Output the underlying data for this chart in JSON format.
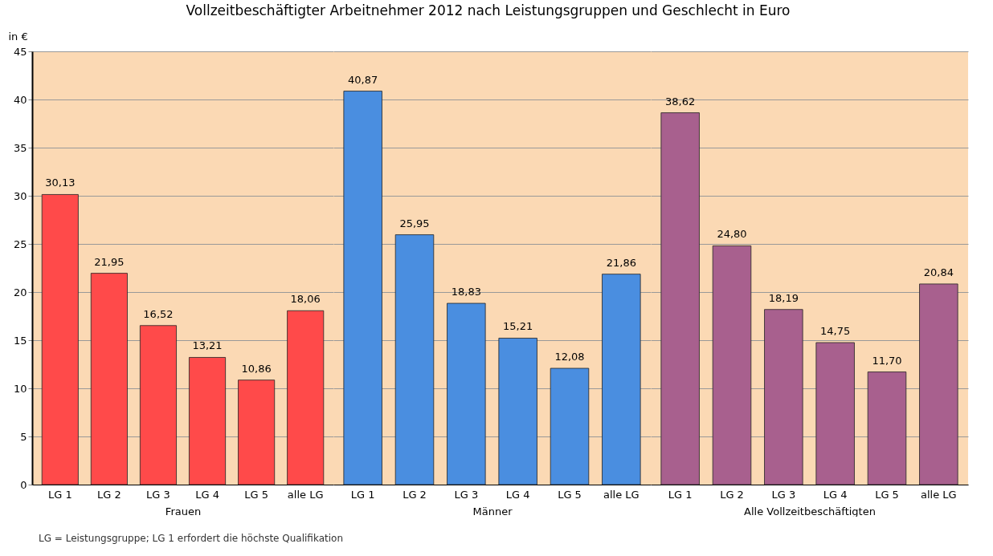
{
  "chart_data": [
    {
      "type": "bar",
      "title": "Vollzeitbeschäftigter Arbeitnehmer 2012 nach Leistungsgruppen und Geschlecht in Euro",
      "ylabel": "in €",
      "xlabel": "Frauen",
      "categories": [
        "LG 1",
        "LG 2",
        "LG 3",
        "LG 4",
        "LG 5",
        "alle LG"
      ],
      "values": [
        30.13,
        21.95,
        16.52,
        13.21,
        10.86,
        18.06
      ],
      "color": "#ff4a4a",
      "ylim": [
        0,
        45
      ],
      "yticks": [
        0,
        5,
        10,
        15,
        20,
        25,
        30,
        35,
        40,
        45
      ],
      "grid": "y",
      "value_labels": [
        "30,13",
        "21,95",
        "16,52",
        "13,21",
        "10,86",
        "18,06"
      ],
      "annotations": [
        "LG = Leistungsgruppe; LG 1 erfordert die höchste Qualifikation"
      ]
    },
    {
      "type": "bar",
      "xlabel": "Männer",
      "categories": [
        "LG 1",
        "LG 2",
        "LG 3",
        "LG 4",
        "LG 5",
        "alle LG"
      ],
      "values": [
        40.87,
        25.95,
        18.83,
        15.21,
        12.08,
        21.86
      ],
      "color": "#4a8ee0",
      "ylim": [
        0,
        45
      ],
      "yticks": [
        0,
        5,
        10,
        15,
        20,
        25,
        30,
        35,
        40,
        45
      ],
      "grid": "y",
      "value_labels": [
        "40,87",
        "25,95",
        "18,83",
        "15,21",
        "12,08",
        "21,86"
      ],
      "tick_labels": "x"
    },
    {
      "type": "bar",
      "xlabel": "Alle Vollzeitbeschäftigten",
      "categories": [
        "LG 1",
        "LG 2",
        "LG 3",
        "LG 4",
        "LG 5",
        "alle LG"
      ],
      "values": [
        38.62,
        24.8,
        18.19,
        14.75,
        11.7,
        20.84
      ],
      "color": "#a8608e",
      "ylim": [
        0,
        45
      ],
      "yticks": [
        0,
        5,
        10,
        15,
        20,
        25,
        30,
        35,
        40,
        45
      ],
      "grid": "y",
      "value_labels": [
        "38,62",
        "24,80",
        "18,19",
        "14,75",
        "11,70",
        "20,84"
      ],
      "tick_labels": "x"
    }
  ]
}
